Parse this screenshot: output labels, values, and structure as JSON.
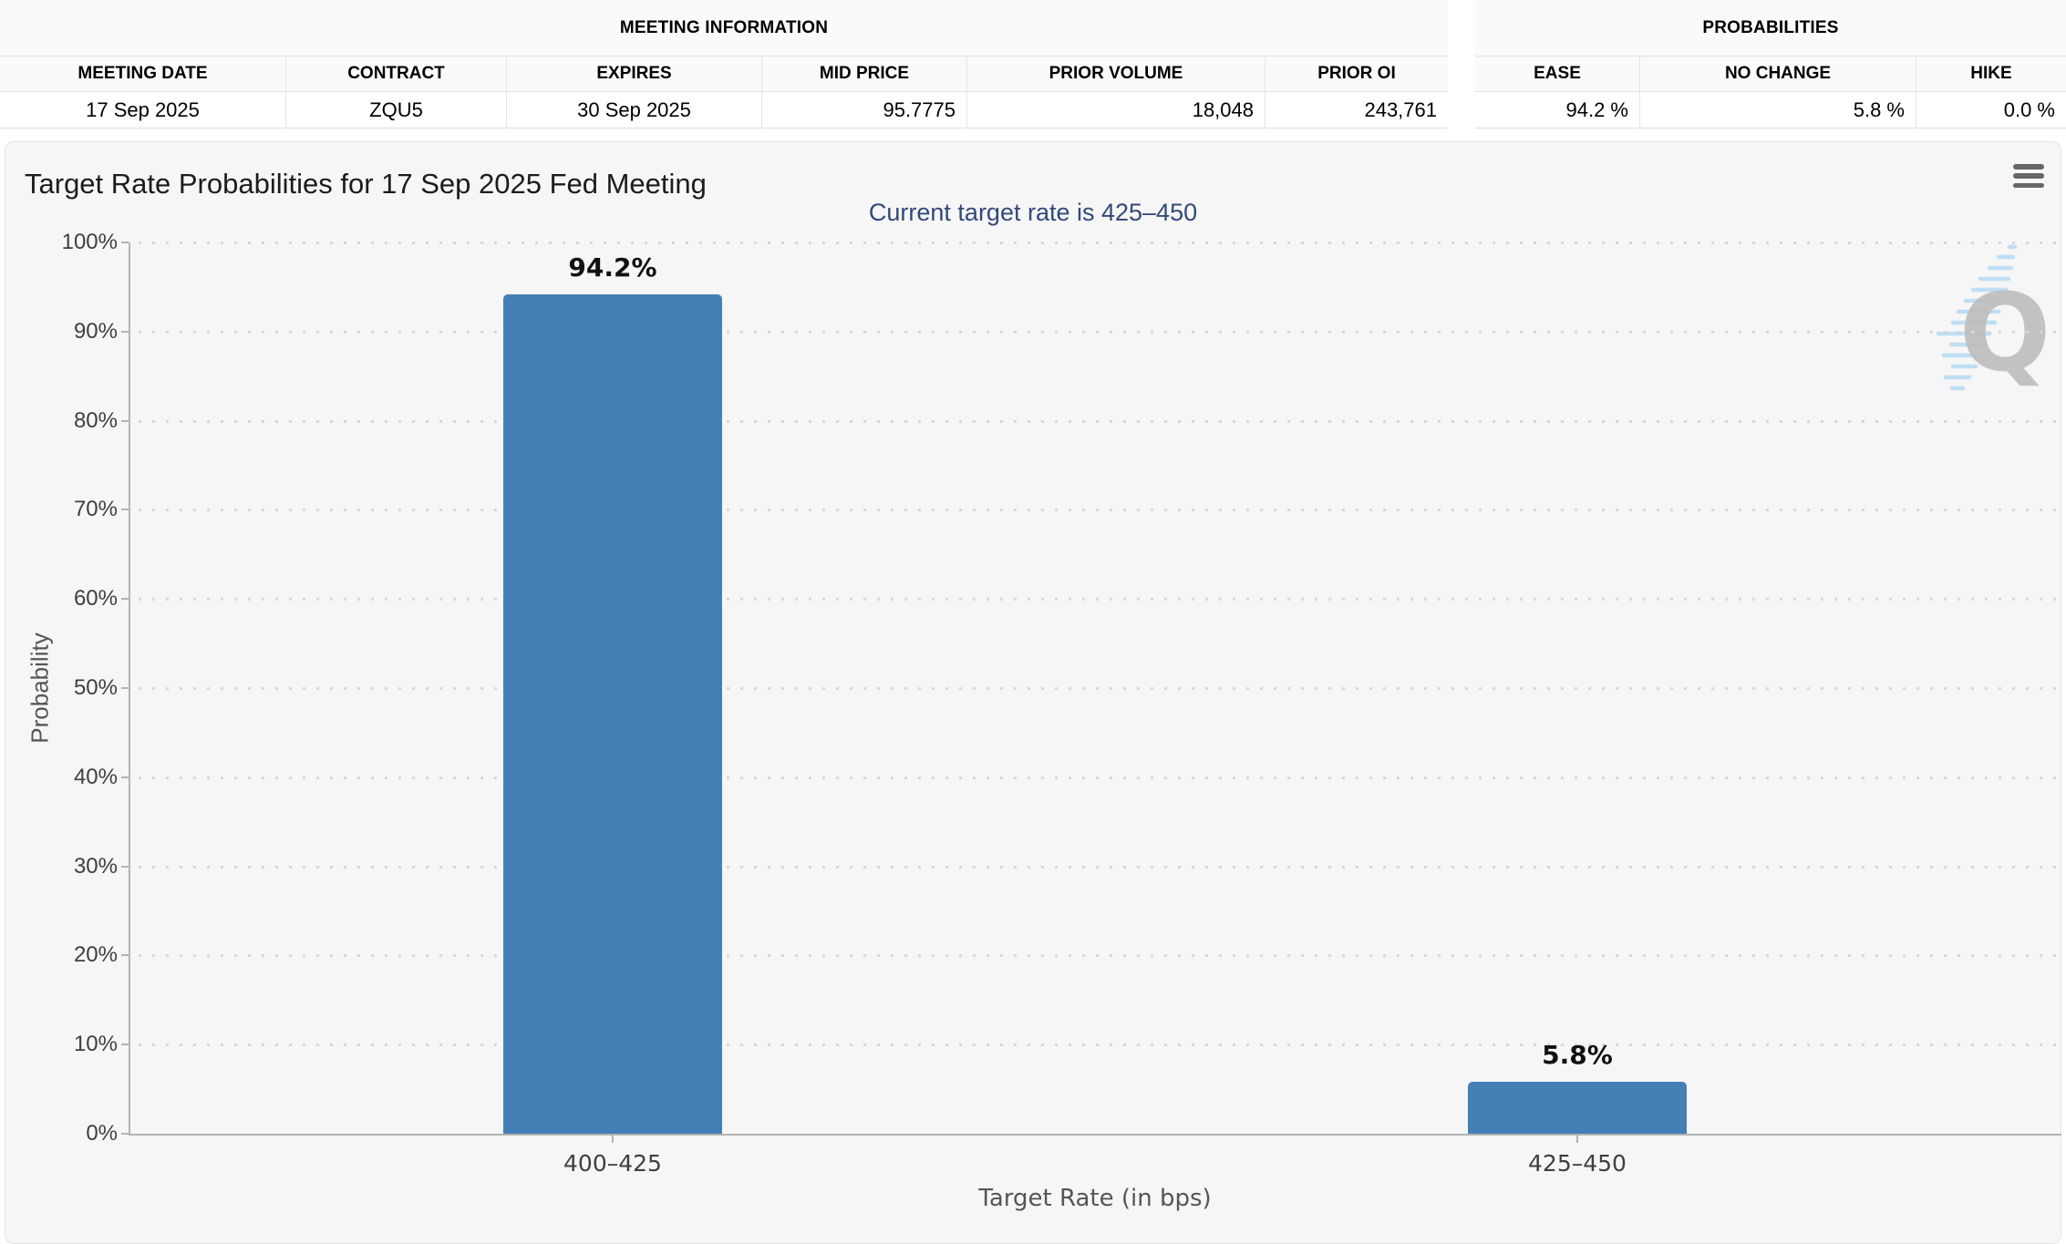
{
  "meeting_information": {
    "title": "MEETING INFORMATION",
    "columns": [
      "MEETING DATE",
      "CONTRACT",
      "EXPIRES",
      "MID PRICE",
      "PRIOR VOLUME",
      "PRIOR OI"
    ],
    "values": [
      "17 Sep 2025",
      "ZQU5",
      "30 Sep 2025",
      "95.7775",
      "18,048",
      "243,761"
    ]
  },
  "probabilities": {
    "title": "PROBABILITIES",
    "columns": [
      "EASE",
      "NO CHANGE",
      "HIKE"
    ],
    "values": [
      "94.2 %",
      "5.8 %",
      "0.0 %"
    ]
  },
  "chart": {
    "title": "Target Rate Probabilities for 17 Sep 2025 Fed Meeting",
    "subtitle": "Current target rate is 425–450",
    "menu_icon": "hamburger-menu-icon",
    "watermark": "quikstrike-q-logo"
  },
  "chart_data": {
    "type": "bar",
    "categories": [
      "400–425",
      "425–450"
    ],
    "values": [
      94.2,
      5.8
    ],
    "bar_labels": [
      "94.2%",
      "5.8%"
    ],
    "title": "Target Rate Probabilities for 17 Sep 2025 Fed Meeting",
    "subtitle": "Current target rate is 425–450",
    "xlabel": "Target Rate (in bps)",
    "ylabel": "Probability",
    "ylim": [
      0,
      100
    ],
    "ytick_labels": [
      "0%",
      "10%",
      "20%",
      "30%",
      "40%",
      "50%",
      "60%",
      "70%",
      "80%",
      "90%",
      "100%"
    ],
    "grid": "dotted-horizontal",
    "legend": "none",
    "bar_color": "#4480b5",
    "subtitle_color": "#33497a"
  }
}
